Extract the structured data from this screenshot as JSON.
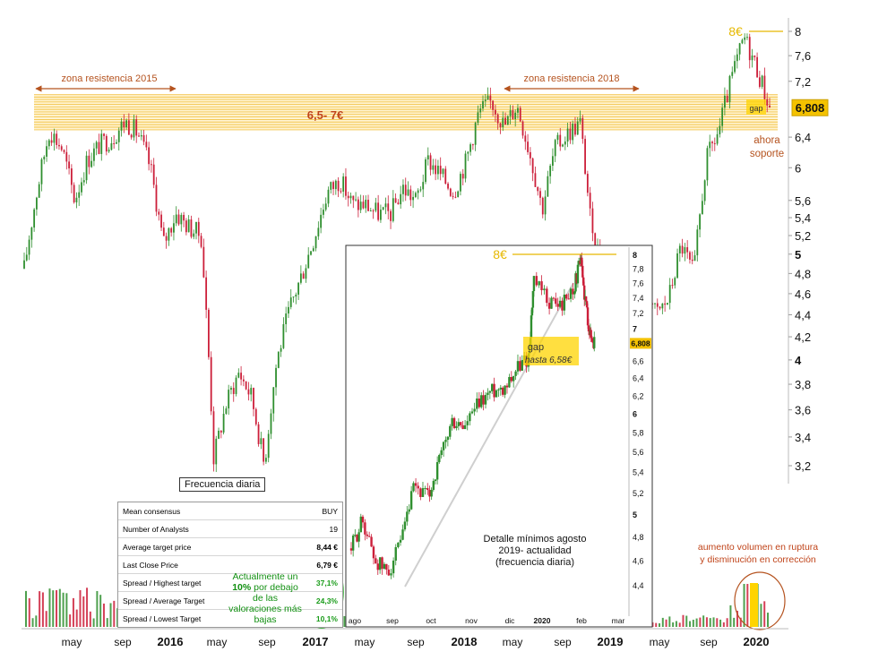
{
  "chart_data": [
    {
      "type": "candlestick",
      "title": "",
      "x_ticks": [
        "may",
        "sep",
        "2016",
        "may",
        "sep",
        "2017",
        "may",
        "sep",
        "2018",
        "may",
        "sep",
        "2019",
        "may",
        "sep",
        "2020"
      ],
      "y_ticks": [
        "8",
        "7,6",
        "7,2",
        "6,4",
        "6",
        "5,6",
        "5,4",
        "5,2",
        "5",
        "4,8",
        "4,6",
        "4,4",
        "4,2",
        "4",
        "3,8",
        "3,6",
        "3,4",
        "3,2"
      ],
      "last_price_label": "6,808",
      "resistance_zone": {
        "low": 6.5,
        "high": 7.0,
        "label": "6,5- 7€"
      },
      "price_path": [
        [
          "2015-03",
          4.85
        ],
        [
          "2015-04",
          5.7
        ],
        [
          "2015-05",
          6.5
        ],
        [
          "2015-06",
          6.25
        ],
        [
          "2015-07",
          5.6
        ],
        [
          "2015-08",
          6.1
        ],
        [
          "2015-09",
          6.3
        ],
        [
          "2015-10",
          6.4
        ],
        [
          "2015-11",
          6.62
        ],
        [
          "2015-12",
          6.45
        ],
        [
          "2016-01",
          6.0
        ],
        [
          "2016-02",
          5.1
        ],
        [
          "2016-03",
          5.45
        ],
        [
          "2016-04",
          5.3
        ],
        [
          "2016-05",
          5.2
        ],
        [
          "2016-06",
          3.25
        ],
        [
          "2016-07",
          3.65
        ],
        [
          "2016-08",
          3.9
        ],
        [
          "2016-09",
          3.7
        ],
        [
          "2016-10",
          3.2
        ],
        [
          "2016-11",
          4.0
        ],
        [
          "2016-12",
          4.45
        ],
        [
          "2017-01",
          4.8
        ],
        [
          "2017-02",
          5.2
        ],
        [
          "2017-03",
          5.7
        ],
        [
          "2017-04",
          5.85
        ],
        [
          "2017-05",
          5.55
        ],
        [
          "2017-06",
          5.55
        ],
        [
          "2017-07",
          5.45
        ],
        [
          "2017-08",
          5.45
        ],
        [
          "2017-09",
          5.75
        ],
        [
          "2017-10",
          5.6
        ],
        [
          "2017-11",
          6.1
        ],
        [
          "2017-12",
          5.9
        ],
        [
          "2018-01",
          5.7
        ],
        [
          "2018-02",
          6.1
        ],
        [
          "2018-03",
          6.75
        ],
        [
          "2018-04",
          6.9
        ],
        [
          "2018-05",
          6.55
        ],
        [
          "2018-06",
          6.85
        ],
        [
          "2018-07",
          6.2
        ],
        [
          "2018-08",
          5.5
        ],
        [
          "2018-09",
          6.25
        ],
        [
          "2018-10",
          6.45
        ],
        [
          "2018-11",
          6.6
        ],
        [
          "2018-12",
          5.1
        ],
        [
          "2019-01",
          4.9
        ],
        [
          "2019-02",
          4.5
        ],
        [
          "2019-03",
          4.3
        ],
        [
          "2019-04",
          4.8
        ],
        [
          "2019-05",
          4.4
        ],
        [
          "2019-06",
          4.55
        ],
        [
          "2019-07",
          5.1
        ],
        [
          "2019-08",
          4.8
        ],
        [
          "2019-09",
          6.1
        ],
        [
          "2019-10",
          6.5
        ],
        [
          "2019-11",
          7.25
        ],
        [
          "2019-12",
          7.9
        ],
        [
          "2020-01",
          7.4
        ],
        [
          "2020-02",
          6.81
        ]
      ],
      "volume_spikes": [
        "2015",
        "2020-01"
      ],
      "annotations": {
        "target": "8€",
        "resistance_2015": "zona resistencia 2015",
        "resistance_2018": "zona resistencia 2018",
        "gap": "gap",
        "support": [
          "ahora",
          "soporte"
        ],
        "volume_note": [
          "aumento volumen en ruptura",
          "y disminución en corrección"
        ],
        "frequency": "Frecuencia diaria"
      }
    },
    {
      "type": "candlestick",
      "title": "",
      "x_ticks": [
        "ago",
        "sep",
        "oct",
        "nov",
        "dic",
        "2020",
        "feb",
        "mar"
      ],
      "y_ticks": [
        "8",
        "7,8",
        "7,6",
        "7,4",
        "7,2",
        "7",
        "6,6",
        "6,4",
        "6,2",
        "6",
        "5,8",
        "5,6",
        "5,4",
        "5,2",
        "5",
        "4,8",
        "4,6",
        "4,4"
      ],
      "last_price_label": "6,808",
      "price_path": [
        [
          "2019-08-01",
          4.7
        ],
        [
          "2019-08-10",
          4.95
        ],
        [
          "2019-08-20",
          4.6
        ],
        [
          "2019-08-30",
          4.5
        ],
        [
          "2019-09-10",
          4.75
        ],
        [
          "2019-09-20",
          5.25
        ],
        [
          "2019-10-01",
          5.15
        ],
        [
          "2019-10-10",
          5.5
        ],
        [
          "2019-10-20",
          5.9
        ],
        [
          "2019-10-30",
          5.85
        ],
        [
          "2019-11-10",
          6.1
        ],
        [
          "2019-11-20",
          6.25
        ],
        [
          "2019-11-30",
          6.3
        ],
        [
          "2019-12-10",
          6.5
        ],
        [
          "2019-12-20",
          6.65
        ],
        [
          "2019-12-24",
          7.6
        ],
        [
          "2020-01-05",
          7.35
        ],
        [
          "2020-01-15",
          7.3
        ],
        [
          "2020-01-25",
          7.55
        ],
        [
          "2020-01-30",
          7.9
        ],
        [
          "2020-02-03",
          7.35
        ],
        [
          "2020-02-07",
          6.9
        ],
        [
          "2020-02-10",
          6.81
        ]
      ],
      "annotations": {
        "target": "8€",
        "gap": "gap",
        "gap_detail": "hasta 6,58€",
        "caption": [
          "Detalle mínimos agosto",
          "2019- actualidad",
          "(frecuencia diaria)"
        ]
      }
    }
  ],
  "consensus_table": {
    "rows": [
      {
        "label": "Mean consensus",
        "value": "BUY"
      },
      {
        "label": "Number of Analysts",
        "value": "19"
      },
      {
        "label": "Average target price",
        "value": "8,44 €"
      },
      {
        "label": "Last Close Price",
        "value": "6,79 €"
      },
      {
        "label": "Spread / Highest target",
        "value": "37,1%"
      },
      {
        "label": "Spread / Average Target",
        "value": "24,3%"
      },
      {
        "label": "Spread / Lowest Target",
        "value": "10,1%"
      }
    ]
  },
  "valuation_note": {
    "pre": "Actualmente un",
    "strong": "10%",
    "post": "por debajo de las valoraciones más bajas"
  },
  "colors": {
    "up": "#2f8f2f",
    "down": "#cc1f3a",
    "zone": "#f3c44a",
    "accent_arrow": "#b5531f",
    "target_line": "#e6b800",
    "highlight": "#ffd400",
    "note_green": "#139013"
  }
}
